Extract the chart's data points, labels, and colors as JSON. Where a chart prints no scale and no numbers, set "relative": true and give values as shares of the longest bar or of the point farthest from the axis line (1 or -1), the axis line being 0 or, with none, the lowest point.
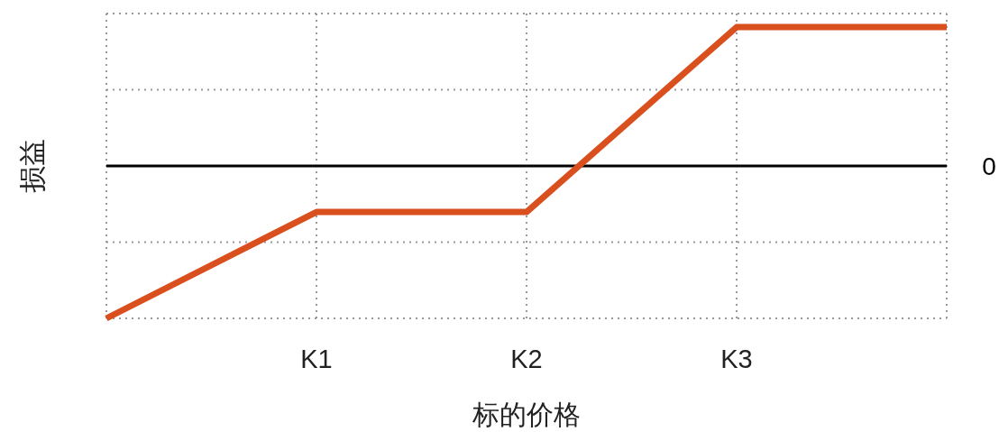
{
  "chart_data": {
    "type": "line",
    "relative": true,
    "xlabel": "标的价格",
    "ylabel": "损益",
    "categories": [
      null,
      "K1",
      "K2",
      "K3",
      null
    ],
    "series": [
      {
        "color": "#d9501e",
        "values": [
          -1,
          -0.302,
          -0.302,
          0.911,
          0.911
        ]
      }
    ],
    "ref_lines": [
      {
        "axis": "y",
        "value": 0,
        "label": "0",
        "color": "#000000",
        "line_style": "solid"
      }
    ],
    "grid": true,
    "marker": "none",
    "line_style": "solid"
  }
}
